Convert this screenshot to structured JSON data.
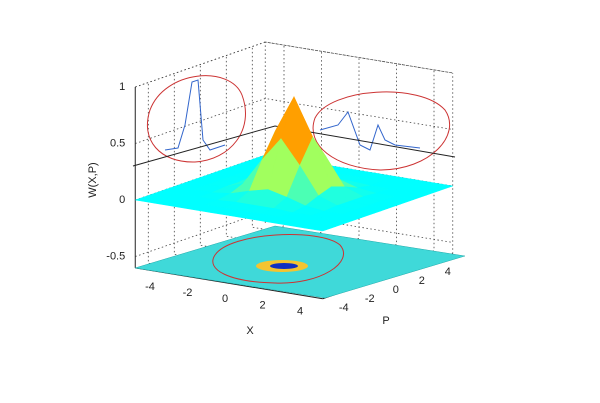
{
  "chart_data": {
    "type": "surface3d",
    "xlabel": "X",
    "ylabel": "P",
    "zlabel": "W(X,P)",
    "x": [
      -5,
      -4,
      -3,
      -2,
      -1,
      0,
      1,
      2,
      3,
      4,
      5
    ],
    "y": [
      -5,
      -4,
      -3,
      -2,
      -1,
      0,
      1,
      2,
      3,
      4,
      5
    ],
    "z": [
      [
        0,
        0,
        0,
        0,
        0,
        0,
        0,
        0,
        0,
        0,
        0
      ],
      [
        0,
        0,
        0,
        0,
        0,
        0,
        0,
        0,
        0,
        0,
        0
      ],
      [
        0,
        0,
        0,
        0,
        0.01,
        0.01,
        0.01,
        0,
        0,
        0,
        0
      ],
      [
        0,
        0,
        0,
        0.02,
        0.07,
        0.11,
        0.07,
        0.02,
        0,
        0,
        0
      ],
      [
        0,
        0,
        0.01,
        0.07,
        0.31,
        0.52,
        0.31,
        0.07,
        0.01,
        0,
        0
      ],
      [
        0,
        0,
        0.01,
        0.11,
        0.52,
        0.85,
        0.52,
        0.11,
        0.01,
        0,
        0
      ],
      [
        0,
        0,
        0.01,
        0.07,
        0.31,
        0.52,
        0.31,
        0.07,
        0.01,
        0,
        0
      ],
      [
        0,
        0,
        0,
        0.02,
        0.07,
        0.11,
        0.07,
        0.02,
        0,
        0,
        0
      ],
      [
        0,
        0,
        0,
        0,
        0.01,
        0.01,
        0.01,
        0,
        0,
        0,
        0
      ],
      [
        0,
        0,
        0,
        0,
        0,
        0,
        0,
        0,
        0,
        0,
        0
      ],
      [
        0,
        0,
        0,
        0,
        0,
        0,
        0,
        0,
        0,
        0,
        0
      ]
    ],
    "xlim": [
      -5,
      5
    ],
    "ylim": [
      -5,
      5
    ],
    "zlim": [
      -0.6,
      1
    ],
    "xticks": [
      -4,
      -2,
      0,
      2,
      4
    ],
    "yticks": [
      -4,
      -2,
      0,
      2,
      4
    ],
    "zticks": [
      -0.5,
      0,
      0.5,
      1
    ],
    "colormap": "jet",
    "grid": true
  }
}
